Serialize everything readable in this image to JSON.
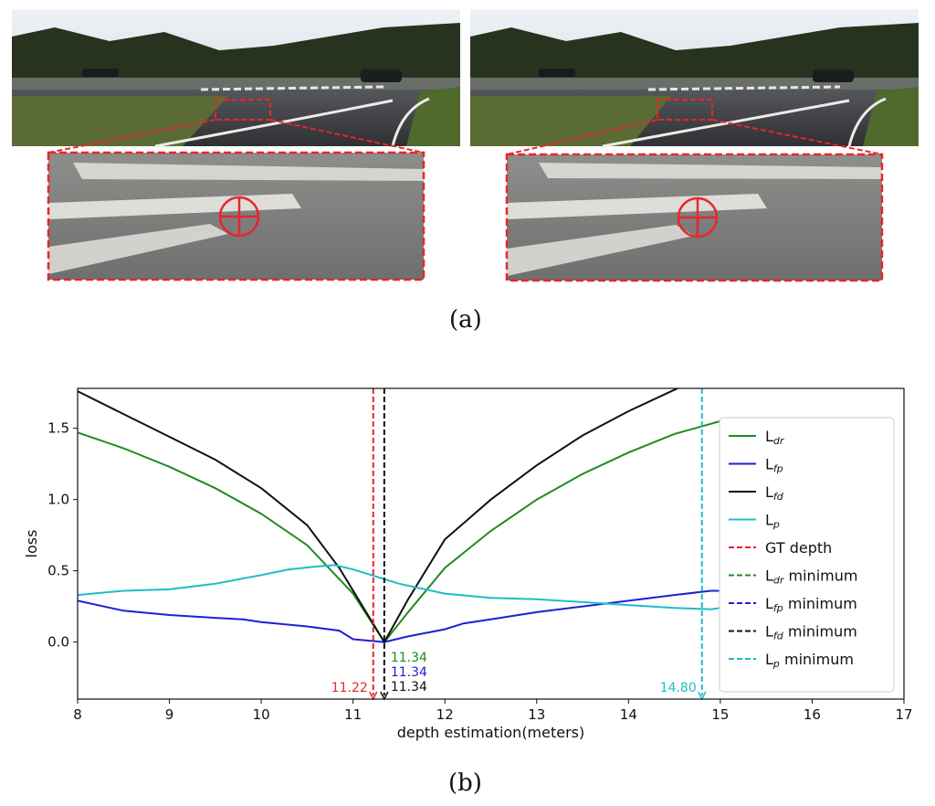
{
  "figure": {
    "caption_a": "(a)",
    "caption_b": "(b)"
  },
  "photos": {
    "left": {
      "sky": "#dfe6ee",
      "road": "#3d3f43",
      "grass": "#5b6b35",
      "trees": "#27331f",
      "marker": "#e8262a"
    },
    "right": {
      "sky": "#dfe6ee",
      "road": "#3d3f43",
      "grass": "#5b6b35",
      "trees": "#27331f",
      "marker": "#e8262a"
    }
  },
  "chart_data": {
    "type": "line",
    "xlabel": "depth estimation(meters)",
    "ylabel": "loss",
    "xlim": [
      8,
      17
    ],
    "ylim": [
      -0.4,
      1.78
    ],
    "xticks": [
      "8",
      "9",
      "10",
      "11",
      "12",
      "13",
      "14",
      "15",
      "16",
      "17"
    ],
    "yticks": [
      "0.0",
      "0.5",
      "1.0",
      "1.5"
    ],
    "grid": false,
    "legend_position": "right",
    "series": [
      {
        "name": "L",
        "sub": "dr",
        "color": "#1f8a1f",
        "x": [
          8,
          8.5,
          9,
          9.5,
          10,
          10.5,
          11,
          11.34,
          11.6,
          12,
          12.5,
          13,
          13.5,
          14,
          14.5,
          15
        ],
        "y": [
          1.47,
          1.36,
          1.23,
          1.08,
          0.9,
          0.68,
          0.34,
          0.0,
          0.21,
          0.52,
          0.78,
          1.0,
          1.18,
          1.33,
          1.46,
          1.55
        ]
      },
      {
        "name": "L",
        "sub": "fp",
        "color": "#1f1fd6",
        "x": [
          8,
          8.5,
          9,
          9.5,
          9.8,
          10,
          10.5,
          10.85,
          11,
          11.34,
          11.6,
          12,
          12.2,
          12.5,
          13,
          13.5,
          14,
          14.5,
          14.9,
          15.0
        ],
        "y": [
          0.29,
          0.22,
          0.19,
          0.17,
          0.16,
          0.14,
          0.11,
          0.08,
          0.02,
          0.0,
          0.04,
          0.09,
          0.13,
          0.16,
          0.21,
          0.25,
          0.29,
          0.33,
          0.36,
          0.36
        ]
      },
      {
        "name": "L",
        "sub": "fd",
        "color": "#111111",
        "x": [
          8,
          8.5,
          9,
          9.5,
          10,
          10.5,
          10.85,
          11.34,
          11.6,
          12,
          12.5,
          13,
          13.5,
          14,
          14.4,
          14.6
        ],
        "y": [
          1.76,
          1.6,
          1.44,
          1.28,
          1.08,
          0.82,
          0.52,
          0.0,
          0.3,
          0.72,
          1.0,
          1.24,
          1.45,
          1.62,
          1.74,
          1.8
        ]
      },
      {
        "name": "L",
        "sub": "p",
        "color": "#1fbcc6",
        "x": [
          8,
          8.5,
          9,
          9.5,
          10,
          10.3,
          10.6,
          10.8,
          11,
          11.5,
          12,
          12.5,
          13,
          13.5,
          14,
          14.5,
          14.9,
          15
        ],
        "y": [
          0.33,
          0.36,
          0.37,
          0.41,
          0.47,
          0.51,
          0.53,
          0.54,
          0.51,
          0.41,
          0.34,
          0.31,
          0.3,
          0.28,
          0.26,
          0.24,
          0.23,
          0.24
        ]
      }
    ],
    "vlines": [
      {
        "label": "GT depth",
        "x": 11.22,
        "color": "#e8262a",
        "text": "11.22"
      },
      {
        "label": "L",
        "sub": "dr",
        "suffix": " minimum",
        "x": 11.34,
        "color": "#1f8a1f",
        "text": "11.34"
      },
      {
        "label": "L",
        "sub": "fp",
        "suffix": " minimum",
        "x": 11.34,
        "color": "#1f1fd6",
        "text": "11.34"
      },
      {
        "label": "L",
        "sub": "fd",
        "suffix": " minimum",
        "x": 11.34,
        "color": "#111111",
        "text": "11.34"
      },
      {
        "label": "L",
        "sub": "p",
        "suffix": " minimum",
        "x": 14.8,
        "color": "#1fbcc6",
        "text": "14.80"
      }
    ]
  }
}
